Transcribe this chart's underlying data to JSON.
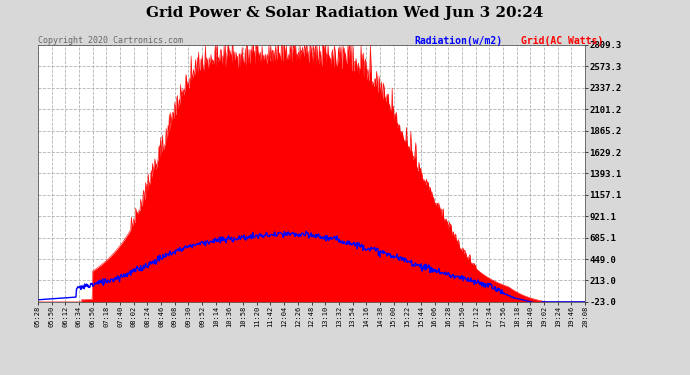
{
  "title": "Grid Power & Solar Radiation Wed Jun 3 20:24",
  "copyright": "Copyright 2020 Cartronics.com",
  "legend_radiation": "Radiation(w/m2)",
  "legend_grid": "Grid(AC Watts)",
  "y_ticks": [
    -23.0,
    213.0,
    449.0,
    685.1,
    921.1,
    1157.1,
    1393.1,
    1629.2,
    1865.2,
    2101.2,
    2337.2,
    2573.3,
    2809.3
  ],
  "x_labels": [
    "05:28",
    "05:50",
    "06:12",
    "06:34",
    "06:56",
    "07:18",
    "07:40",
    "08:02",
    "08:24",
    "08:46",
    "09:08",
    "09:30",
    "09:52",
    "10:14",
    "10:36",
    "10:58",
    "11:20",
    "11:42",
    "12:04",
    "12:26",
    "12:48",
    "13:10",
    "13:32",
    "13:54",
    "14:16",
    "14:38",
    "15:00",
    "15:22",
    "15:44",
    "16:06",
    "16:28",
    "16:50",
    "17:12",
    "17:34",
    "17:56",
    "18:18",
    "18:40",
    "19:02",
    "19:24",
    "19:46",
    "20:08"
  ],
  "bg_color": "#d8d8d8",
  "plot_bg": "#ffffff",
  "grid_color": "#aaaaaa",
  "radiation_color": "#0000ff",
  "grid_ac_color": "#ff0000",
  "ymin": -23.0,
  "ymax": 2809.3
}
